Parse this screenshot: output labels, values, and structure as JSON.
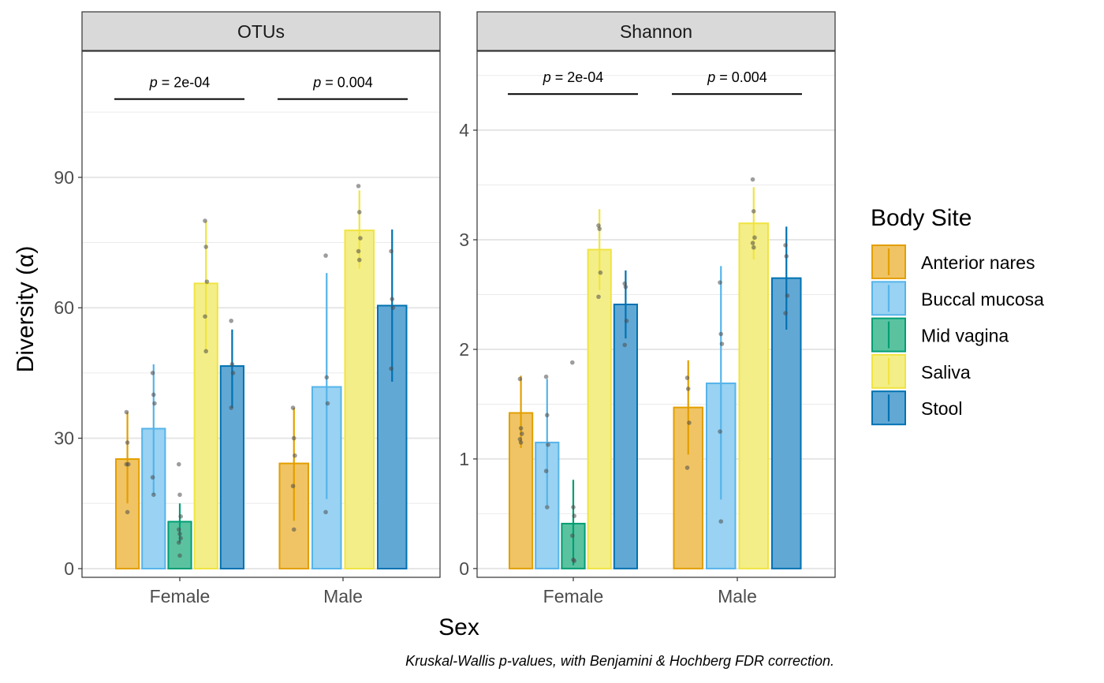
{
  "chart_data": {
    "type": "bar",
    "xlabel": "Sex",
    "ylabel": "Diversity (α)",
    "caption": "Kruskal-Wallis p-values, with Benjamini & Hochberg FDR correction.",
    "legend": {
      "title": "Body Site",
      "position": "right",
      "entries": [
        {
          "name": "Anterior nares",
          "fill": "#f0c465",
          "stroke": "#e39f00"
        },
        {
          "name": "Buccal mucosa",
          "fill": "#99d2f2",
          "stroke": "#56b4e9"
        },
        {
          "name": "Mid vagina",
          "fill": "#5bc2a0",
          "stroke": "#009e73"
        },
        {
          "name": "Saliva",
          "fill": "#f4ee88",
          "stroke": "#f0e442"
        },
        {
          "name": "Stool",
          "fill": "#62a8d4",
          "stroke": "#0072b2"
        }
      ]
    },
    "categories": [
      "Female",
      "Male"
    ],
    "grid": true,
    "panels": [
      {
        "strip": "OTUs",
        "ylim": [
          -2,
          119
        ],
        "yticks": [
          0,
          30,
          60,
          90
        ],
        "pvalues": [
          {
            "category": "Female",
            "label": "2e-04",
            "y": 108
          },
          {
            "category": "Male",
            "label": "0.004",
            "y": 108
          }
        ],
        "groups": [
          {
            "category": "Female",
            "bars": [
              {
                "site": "Anterior nares",
                "value": 25.2,
                "err": [
                  15,
                  36
                ],
                "points": [
                  36,
                  29,
                  24,
                  24,
                  13
                ]
              },
              {
                "site": "Buccal mucosa",
                "value": 32.2,
                "err": [
                  17,
                  47
                ],
                "points": [
                  45,
                  40,
                  38,
                  21,
                  17
                ]
              },
              {
                "site": "Mid vagina",
                "value": 10.8,
                "err": [
                  6,
                  15
                ],
                "points": [
                  24,
                  17,
                  12,
                  9,
                  8,
                  7,
                  6,
                  3
                ]
              },
              {
                "site": "Saliva",
                "value": 65.6,
                "err": [
                  50,
                  80
                ],
                "points": [
                  80,
                  74,
                  66,
                  58,
                  50
                ]
              },
              {
                "site": "Stool",
                "value": 46.6,
                "err": [
                  37,
                  55
                ],
                "points": [
                  57,
                  47,
                  45,
                  37
                ]
              }
            ]
          },
          {
            "category": "Male",
            "bars": [
              {
                "site": "Anterior nares",
                "value": 24.2,
                "err": [
                  11,
                  37
                ],
                "points": [
                  37,
                  30,
                  26,
                  19,
                  9
                ]
              },
              {
                "site": "Buccal mucosa",
                "value": 41.8,
                "err": [
                  16,
                  68
                ],
                "points": [
                  72,
                  44,
                  38,
                  13
                ]
              },
              {
                "site": "Saliva",
                "value": 77.8,
                "err": [
                  69,
                  87
                ],
                "points": [
                  88,
                  82,
                  76,
                  73,
                  71
                ]
              },
              {
                "site": "Stool",
                "value": 60.5,
                "err": [
                  43,
                  78
                ],
                "points": [
                  73,
                  62,
                  60,
                  46
                ]
              }
            ]
          }
        ]
      },
      {
        "strip": "Shannon",
        "ylim": [
          -0.08,
          4.72
        ],
        "yticks": [
          0,
          1,
          2,
          3,
          4
        ],
        "pvalues": [
          {
            "category": "Female",
            "label": "2e-04",
            "y": 4.33
          },
          {
            "category": "Male",
            "label": "0.004",
            "y": 4.33
          }
        ],
        "groups": [
          {
            "category": "Female",
            "bars": [
              {
                "site": "Anterior nares",
                "value": 1.42,
                "err": [
                  1.1,
                  1.76
                ],
                "points": [
                  1.73,
                  1.28,
                  1.23,
                  1.18,
                  1.15
                ]
              },
              {
                "site": "Buccal mucosa",
                "value": 1.15,
                "err": [
                  0.58,
                  1.73
                ],
                "points": [
                  1.75,
                  1.4,
                  1.13,
                  0.89,
                  0.56
                ]
              },
              {
                "site": "Mid vagina",
                "value": 0.41,
                "err": [
                  0.03,
                  0.81
                ],
                "points": [
                  1.88,
                  0.56,
                  0.48,
                  0.3,
                  0.08,
                  0.07
                ]
              },
              {
                "site": "Saliva",
                "value": 2.91,
                "err": [
                  2.54,
                  3.28
                ],
                "points": [
                  3.13,
                  3.1,
                  2.7,
                  2.48
                ]
              },
              {
                "site": "Stool",
                "value": 2.41,
                "err": [
                  2.1,
                  2.72
                ],
                "points": [
                  2.6,
                  2.57,
                  2.26,
                  2.04
                ]
              }
            ]
          },
          {
            "category": "Male",
            "bars": [
              {
                "site": "Anterior nares",
                "value": 1.47,
                "err": [
                  1.04,
                  1.9
                ],
                "points": [
                  1.74,
                  1.64,
                  1.33,
                  0.92
                ]
              },
              {
                "site": "Buccal mucosa",
                "value": 1.69,
                "err": [
                  0.63,
                  2.76
                ],
                "points": [
                  2.61,
                  2.14,
                  2.05,
                  1.25,
                  0.43
                ]
              },
              {
                "site": "Saliva",
                "value": 3.15,
                "err": [
                  2.82,
                  3.48
                ],
                "points": [
                  3.55,
                  3.26,
                  3.02,
                  2.97,
                  2.93
                ]
              },
              {
                "site": "Stool",
                "value": 2.65,
                "err": [
                  2.18,
                  3.12
                ],
                "points": [
                  2.95,
                  2.85,
                  2.49,
                  2.33
                ]
              }
            ]
          }
        ]
      }
    ]
  }
}
